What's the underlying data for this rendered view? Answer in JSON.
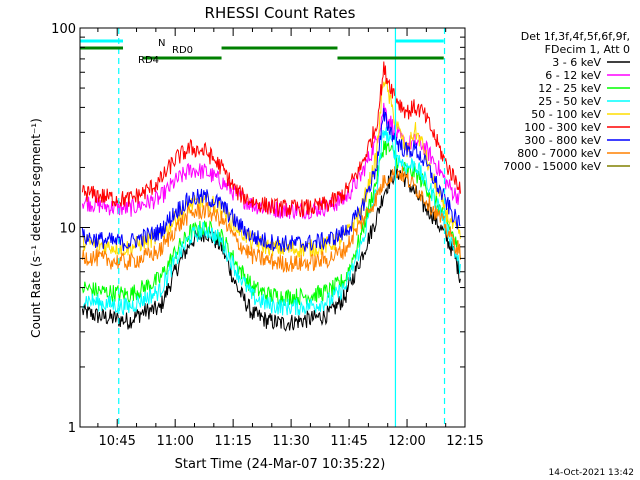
{
  "chart_data": {
    "type": "line",
    "title": "RHESSI Count Rates",
    "xlabel": "Start Time (24-Mar-07 10:35:22)",
    "ylabel": "Count Rate (s⁻¹ detector segment⁻¹)",
    "yscale": "log",
    "ylim": [
      1,
      100
    ],
    "xlim": [
      "10:35:22",
      "12:15:00"
    ],
    "x_ticks": [
      "10:45",
      "11:00",
      "11:15",
      "11:30",
      "11:45",
      "12:00",
      "12:15"
    ],
    "y_ticks": [
      "1",
      "10",
      "100"
    ],
    "x_minutes": [
      36,
      40,
      44,
      48,
      52,
      56,
      60,
      64,
      68,
      72,
      76,
      80,
      84,
      88,
      92,
      96,
      100,
      104,
      108,
      112,
      114,
      116,
      118,
      120,
      122,
      124,
      126,
      128,
      130,
      132,
      134
    ],
    "series": [
      {
        "name": "3 - 6 keV",
        "color": "#000000",
        "values": [
          3.8,
          3.6,
          3.5,
          3.4,
          3.8,
          3.9,
          6.0,
          8.5,
          9.5,
          8.0,
          5.0,
          3.7,
          3.4,
          3.3,
          3.4,
          3.5,
          3.7,
          4.5,
          7.0,
          11.0,
          15.0,
          18.0,
          19.0,
          17.0,
          15.0,
          13.0,
          12.0,
          10.5,
          9.0,
          7.5,
          5.5
        ]
      },
      {
        "name": "6 - 12 keV",
        "color": "#ff00ff",
        "values": [
          13.5,
          13.0,
          12.6,
          12.4,
          13.2,
          14.0,
          17.0,
          19.5,
          19.0,
          17.0,
          14.5,
          13.0,
          12.5,
          12.2,
          12.2,
          12.3,
          12.8,
          14.0,
          18.0,
          27.0,
          40.0,
          33.0,
          28.0,
          26.0,
          27.0,
          26.0,
          23.0,
          20.0,
          17.0,
          15.0,
          14.0
        ]
      },
      {
        "name": "12 - 25 keV",
        "color": "#00ff00",
        "values": [
          5.0,
          4.8,
          4.7,
          4.6,
          5.0,
          5.5,
          7.5,
          9.5,
          10.0,
          9.0,
          6.5,
          5.0,
          4.6,
          4.5,
          4.5,
          4.6,
          4.8,
          5.5,
          9.0,
          17.0,
          26.0,
          24.0,
          21.0,
          19.0,
          19.0,
          17.0,
          15.0,
          13.0,
          11.0,
          9.0,
          7.0
        ]
      },
      {
        "name": "25 - 50 keV",
        "color": "#00ffff",
        "values": [
          4.4,
          4.2,
          4.1,
          4.0,
          4.4,
          4.8,
          6.8,
          9.0,
          9.8,
          8.5,
          6.0,
          4.5,
          4.1,
          4.0,
          4.0,
          4.1,
          4.3,
          5.0,
          8.0,
          15.0,
          31.0,
          26.0,
          22.0,
          20.0,
          21.0,
          18.0,
          15.5,
          13.0,
          10.5,
          8.0,
          6.0
        ]
      },
      {
        "name": "50 - 100 keV",
        "color": "#ffdd00",
        "values": [
          8.5,
          8.2,
          8.0,
          7.9,
          8.5,
          9.0,
          11.0,
          13.0,
          13.5,
          12.5,
          10.0,
          8.5,
          8.0,
          7.8,
          7.8,
          7.9,
          8.2,
          9.0,
          12.0,
          22.0,
          58.0,
          40.0,
          30.0,
          24.0,
          31.0,
          26.0,
          19.0,
          15.0,
          12.0,
          10.0,
          9.0
        ]
      },
      {
        "name": "100 - 300 keV",
        "color": "#ff0000",
        "values": [
          15.0,
          14.5,
          14.0,
          13.8,
          15.0,
          17.0,
          22.0,
          25.0,
          24.0,
          20.0,
          15.0,
          13.5,
          12.8,
          12.5,
          12.5,
          12.6,
          13.2,
          15.0,
          20.0,
          32.0,
          62.0,
          50.0,
          42.0,
          38.0,
          40.0,
          38.0,
          32.0,
          26.0,
          21.0,
          18.0,
          16.0
        ]
      },
      {
        "name": "300 - 800 keV",
        "color": "#0000ff",
        "values": [
          9.0,
          8.7,
          8.5,
          8.4,
          9.0,
          9.5,
          12.0,
          14.0,
          14.2,
          13.0,
          10.5,
          9.0,
          8.5,
          8.3,
          8.3,
          8.4,
          8.7,
          9.5,
          12.0,
          20.0,
          36.0,
          30.0,
          26.0,
          24.0,
          25.0,
          22.0,
          19.0,
          16.0,
          13.5,
          11.5,
          10.0
        ]
      },
      {
        "name": "800 - 7000 keV",
        "color": "#ff8000",
        "values": [
          7.2,
          7.0,
          6.8,
          6.7,
          7.1,
          7.6,
          9.8,
          11.8,
          12.2,
          11.0,
          8.5,
          7.2,
          6.8,
          6.6,
          6.6,
          6.7,
          7.0,
          7.8,
          10.5,
          14.0,
          17.0,
          18.5,
          19.0,
          17.5,
          16.0,
          14.5,
          13.0,
          11.5,
          10.0,
          8.5,
          7.5
        ]
      },
      {
        "name": "7000 - 15000 keV",
        "color": "#808000",
        "values": []
      }
    ],
    "vlines": [
      {
        "minute": 45.4,
        "style": "dashed",
        "color": "#00ffff"
      },
      {
        "minute": 117.0,
        "style": "solid",
        "color": "#00ffff"
      },
      {
        "minute": 129.7,
        "style": "dashed",
        "color": "#00ffff"
      }
    ],
    "bars": [
      {
        "label": "N",
        "color": "#00ffff",
        "segments": [
          [
            35.4,
            46.5
          ],
          [
            117.0,
            129.5
          ]
        ]
      },
      {
        "label": "RD0",
        "color": "#008000",
        "segments": [
          [
            35.4,
            46.5
          ],
          [
            72.0,
            102.0
          ]
        ]
      },
      {
        "label": "RD4",
        "color": "#008000",
        "segments": [
          [
            51.5,
            72.0
          ],
          [
            102.0,
            129.5
          ]
        ]
      }
    ],
    "legend_position": "right",
    "legend_header": [
      "Det 1f,3f,4f,5f,6f,9f,",
      "FDecim 1, Att 0"
    ]
  },
  "footer_date": "14-Oct-2021 13:42"
}
